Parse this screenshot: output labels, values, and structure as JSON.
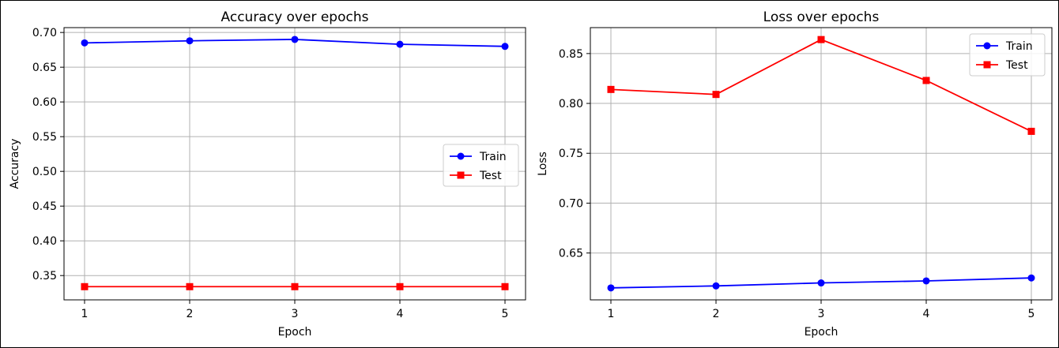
{
  "chart_data": [
    {
      "type": "line",
      "title": "Accuracy over epochs",
      "xlabel": "Epoch",
      "ylabel": "Accuracy",
      "categories": [
        1,
        2,
        3,
        4,
        5
      ],
      "xticks": [
        "1",
        "2",
        "3",
        "4",
        "5"
      ],
      "yticks": [
        "0.35",
        "0.40",
        "0.45",
        "0.50",
        "0.55",
        "0.60",
        "0.65",
        "0.70"
      ],
      "ylim": [
        0.315,
        0.707
      ],
      "grid": true,
      "legend_position": "center-right",
      "series": [
        {
          "name": "Train",
          "values": [
            0.685,
            0.688,
            0.69,
            0.683,
            0.68
          ],
          "color": "#0000ff",
          "marker": "circle"
        },
        {
          "name": "Test",
          "values": [
            0.334,
            0.334,
            0.334,
            0.334,
            0.334
          ],
          "color": "#ff0000",
          "marker": "square"
        }
      ]
    },
    {
      "type": "line",
      "title": "Loss over epochs",
      "xlabel": "Epoch",
      "ylabel": "Loss",
      "categories": [
        1,
        2,
        3,
        4,
        5
      ],
      "xticks": [
        "1",
        "2",
        "3",
        "4",
        "5"
      ],
      "yticks": [
        "0.65",
        "0.70",
        "0.75",
        "0.80",
        "0.85"
      ],
      "ylim": [
        0.603,
        0.876
      ],
      "grid": true,
      "legend_position": "top-right",
      "series": [
        {
          "name": "Train",
          "values": [
            0.615,
            0.617,
            0.62,
            0.622,
            0.625
          ],
          "color": "#0000ff",
          "marker": "circle"
        },
        {
          "name": "Test",
          "values": [
            0.814,
            0.809,
            0.864,
            0.823,
            0.772
          ],
          "color": "#ff0000",
          "marker": "square"
        }
      ]
    }
  ]
}
